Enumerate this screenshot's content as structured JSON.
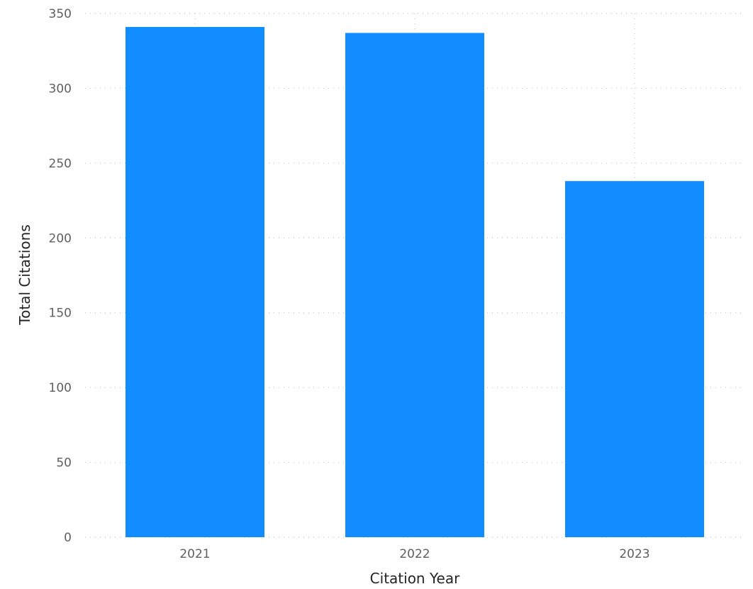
{
  "chart_data": {
    "type": "bar",
    "categories": [
      "2021",
      "2022",
      "2023"
    ],
    "values": [
      341,
      337,
      238
    ],
    "xlabel": "Citation Year",
    "ylabel": "Total Citations",
    "ylim": [
      0,
      350
    ],
    "yticks": [
      0,
      50,
      100,
      150,
      200,
      250,
      300,
      350
    ],
    "grid": true,
    "bar_color": "#118DFF"
  }
}
